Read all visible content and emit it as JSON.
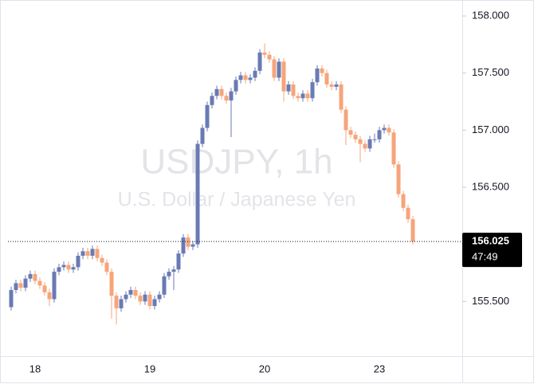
{
  "chart_data": {
    "type": "candlestick",
    "title": "USDJPY, 1h",
    "subtitle": "U.S. Dollar / Japanese Yen",
    "categories": [
      null,
      null,
      null,
      null,
      null,
      "18",
      null,
      null,
      null,
      null,
      null,
      null,
      null,
      null,
      null,
      null,
      null,
      null,
      null,
      null,
      null,
      null,
      null,
      null,
      null,
      null,
      null,
      null,
      null,
      "19",
      null,
      null,
      null,
      null,
      null,
      null,
      null,
      null,
      null,
      null,
      null,
      null,
      null,
      null,
      null,
      null,
      null,
      null,
      null,
      null,
      null,
      null,
      null,
      "20",
      null,
      null,
      null,
      null,
      null,
      null,
      null,
      null,
      null,
      null,
      null,
      null,
      null,
      null,
      null,
      null,
      null,
      null,
      null,
      null,
      null,
      null,
      null,
      "23",
      null,
      null,
      null,
      null,
      null,
      null,
      null
    ],
    "open": [
      155.45,
      155.6,
      155.66,
      155.62,
      155.7,
      155.74,
      155.68,
      155.64,
      155.58,
      155.52,
      155.76,
      155.8,
      155.82,
      155.78,
      155.8,
      155.9,
      155.94,
      155.9,
      155.96,
      155.88,
      155.84,
      155.76,
      155.55,
      155.44,
      155.52,
      155.56,
      155.6,
      155.55,
      155.5,
      155.56,
      155.46,
      155.52,
      155.56,
      155.72,
      155.76,
      155.78,
      155.92,
      156.06,
      155.98,
      156.0,
      156.88,
      157.02,
      157.22,
      157.3,
      157.36,
      157.3,
      157.26,
      157.34,
      157.44,
      157.48,
      157.44,
      157.46,
      157.52,
      157.68,
      157.66,
      157.62,
      157.46,
      157.6,
      157.34,
      157.4,
      157.3,
      157.28,
      157.32,
      157.28,
      157.42,
      157.54,
      157.5,
      157.4,
      157.38,
      157.4,
      157.18,
      157.0,
      156.96,
      156.92,
      156.88,
      156.84,
      156.92,
      156.92,
      157.0,
      157.02,
      156.98,
      156.7,
      156.44,
      156.32,
      156.22
    ],
    "high": [
      155.63,
      155.69,
      155.69,
      155.73,
      155.77,
      155.77,
      155.71,
      155.67,
      155.61,
      155.79,
      155.83,
      155.85,
      155.85,
      155.83,
      155.93,
      155.97,
      155.97,
      155.99,
      155.99,
      155.91,
      155.87,
      155.79,
      155.58,
      155.55,
      155.59,
      155.63,
      155.63,
      155.58,
      155.59,
      155.59,
      155.55,
      155.59,
      155.75,
      155.79,
      155.81,
      155.95,
      156.09,
      156.09,
      156.03,
      156.91,
      157.05,
      157.25,
      157.33,
      157.39,
      157.39,
      157.33,
      157.37,
      157.47,
      157.51,
      157.51,
      157.49,
      157.55,
      157.71,
      157.76,
      157.69,
      157.65,
      157.63,
      157.63,
      157.43,
      157.43,
      157.33,
      157.35,
      157.35,
      157.45,
      157.57,
      157.57,
      157.53,
      157.43,
      157.43,
      157.43,
      157.21,
      157.03,
      156.99,
      156.95,
      156.91,
      156.95,
      156.97,
      157.03,
      157.05,
      157.05,
      157.01,
      156.73,
      156.47,
      156.35,
      156.25
    ],
    "low": [
      155.42,
      155.57,
      155.59,
      155.59,
      155.67,
      155.65,
      155.61,
      155.55,
      155.46,
      155.49,
      155.73,
      155.77,
      155.75,
      155.75,
      155.77,
      155.87,
      155.87,
      155.87,
      155.85,
      155.81,
      155.73,
      155.35,
      155.3,
      155.41,
      155.49,
      155.53,
      155.52,
      155.47,
      155.47,
      155.43,
      155.43,
      155.49,
      155.53,
      155.69,
      155.6,
      155.75,
      155.89,
      155.95,
      155.95,
      155.97,
      156.85,
      156.99,
      157.19,
      157.27,
      157.27,
      157.23,
      156.94,
      157.31,
      157.41,
      157.41,
      157.41,
      157.43,
      157.49,
      157.63,
      157.59,
      157.43,
      157.43,
      157.25,
      157.31,
      157.27,
      157.25,
      157.25,
      157.25,
      157.25,
      157.39,
      157.47,
      157.37,
      157.35,
      157.35,
      157.15,
      156.87,
      156.93,
      156.89,
      156.72,
      156.81,
      156.81,
      156.89,
      156.89,
      156.97,
      156.95,
      156.67,
      156.41,
      156.29,
      156.19,
      156.0
    ],
    "close": [
      155.6,
      155.66,
      155.62,
      155.7,
      155.74,
      155.68,
      155.64,
      155.58,
      155.52,
      155.76,
      155.8,
      155.82,
      155.78,
      155.8,
      155.9,
      155.94,
      155.9,
      155.96,
      155.88,
      155.84,
      155.76,
      155.55,
      155.44,
      155.52,
      155.56,
      155.6,
      155.55,
      155.5,
      155.56,
      155.46,
      155.52,
      155.56,
      155.72,
      155.76,
      155.78,
      155.92,
      156.06,
      155.98,
      156.0,
      156.88,
      157.02,
      157.22,
      157.3,
      157.36,
      157.3,
      157.26,
      157.34,
      157.44,
      157.48,
      157.44,
      157.46,
      157.52,
      157.68,
      157.66,
      157.62,
      157.46,
      157.6,
      157.34,
      157.4,
      157.3,
      157.28,
      157.32,
      157.28,
      157.42,
      157.54,
      157.5,
      157.4,
      157.38,
      157.4,
      157.18,
      157.0,
      156.96,
      156.92,
      156.88,
      156.84,
      156.92,
      156.92,
      157.0,
      157.02,
      156.98,
      156.7,
      156.44,
      156.32,
      156.22,
      156.025
    ],
    "up_color": "#6a7ab3",
    "down_color": "#f6a47a",
    "ylim": [
      155.0,
      158.14
    ],
    "yticks": [
      {
        "value": 155.5,
        "label": "155.500"
      },
      {
        "value": 156.5,
        "label": "156.500"
      },
      {
        "value": 157,
        "label": "157.000"
      },
      {
        "value": 157.5,
        "label": "157.500"
      },
      {
        "value": 158,
        "label": "158.000"
      }
    ],
    "countdown": "47:49"
  }
}
